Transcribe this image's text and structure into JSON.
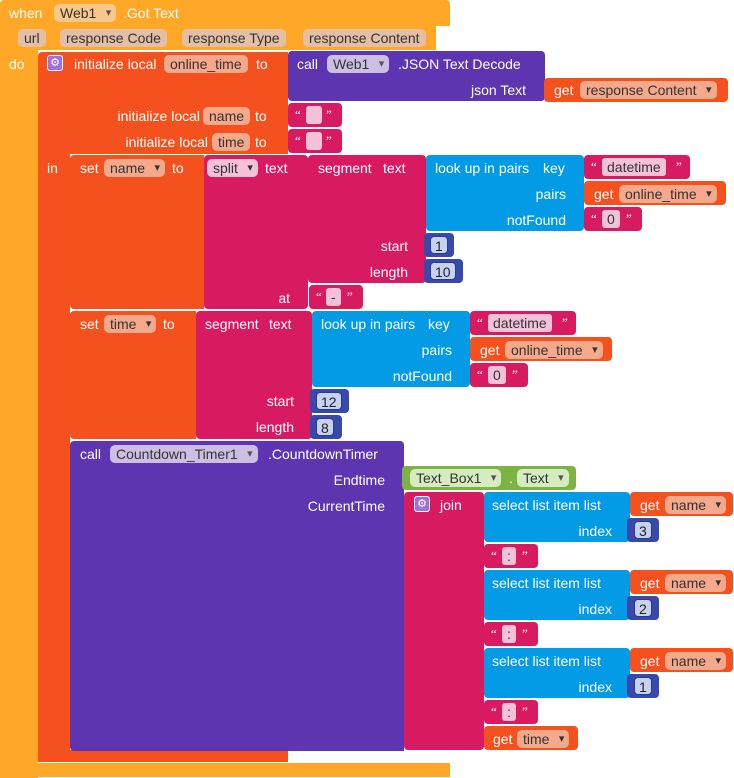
{
  "event": {
    "when": "when",
    "component": "Web1",
    "event_name": ".Got Text",
    "params": [
      "url",
      "response Code",
      "response Type",
      "response Content"
    ],
    "do": "do"
  },
  "init_online": {
    "label": "initialize local",
    "var": "online_time",
    "to": "to"
  },
  "call_json": {
    "call": "call",
    "component": "Web1",
    "method": ".JSON Text Decode",
    "json_text": "json Text"
  },
  "get_response": {
    "get": "get",
    "var": "response Content"
  },
  "init_name": {
    "label": "initialize local",
    "var": "name",
    "to": "to"
  },
  "init_time": {
    "label": "initialize local",
    "var": "time",
    "to": "to"
  },
  "in_label": "in",
  "set_name": {
    "set": "set",
    "var": "name",
    "to": "to",
    "split": "split",
    "text": "text",
    "segment": "segment",
    "seg_text": "text",
    "lookup": "look up in pairs",
    "key": "key",
    "key_val": "datetime",
    "pairs": "pairs",
    "get": "get",
    "pairs_var": "online_time",
    "notfound": "notFound",
    "notfound_val": "0",
    "start": "start",
    "start_val": "1",
    "length": "length",
    "length_val": "10",
    "at": "at",
    "at_val": "-"
  },
  "set_time": {
    "set": "set",
    "var": "time",
    "to": "to",
    "segment": "segment",
    "seg_text": "text",
    "lookup": "look up in pairs",
    "key": "key",
    "key_val": "datetime",
    "pairs": "pairs",
    "get": "get",
    "pairs_var": "online_time",
    "notfound": "notFound",
    "notfound_val": "0",
    "start": "start",
    "start_val": "12",
    "length": "length",
    "length_val": "8"
  },
  "call_countdown": {
    "call": "call",
    "component": "Countdown_Timer1",
    "method": ".CountdownTimer",
    "endtime": "Endtime",
    "textbox": "Text_Box1",
    "dot": ".",
    "prop": "Text",
    "currenttime": "CurrentTime",
    "join": "join"
  },
  "select_items": [
    {
      "label": "select list item  list",
      "get": "get",
      "var": "name",
      "index": "index",
      "index_val": "3",
      "sep": ":"
    },
    {
      "label": "select list item  list",
      "get": "get",
      "var": "name",
      "index": "index",
      "index_val": "2",
      "sep": ":"
    },
    {
      "label": "select list item  list",
      "get": "get",
      "var": "name",
      "index": "index",
      "index_val": "1",
      "sep": ":"
    }
  ],
  "final_get": {
    "get": "get",
    "var": "time"
  },
  "colors": {
    "event": "#ffa726",
    "variable": "#f4511e",
    "text": "#d81b60",
    "component": "#5e35b1",
    "list": "#039be5",
    "math": "#3949ab",
    "property": "#7cb342"
  }
}
